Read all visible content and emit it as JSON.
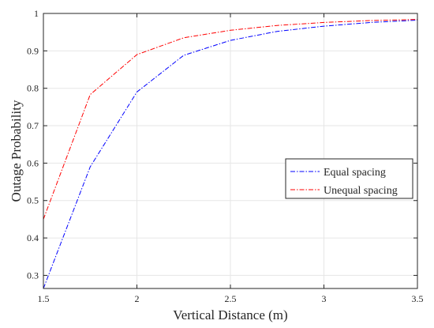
{
  "chart_data": {
    "type": "line",
    "xlabel": "Vertical Distance (m)",
    "ylabel": "Outage Probability",
    "xlim": [
      1.5,
      3.5
    ],
    "ylim": [
      0.265,
      1.0
    ],
    "xticks": [
      1.5,
      2,
      2.5,
      3,
      3.5
    ],
    "xtick_labels": [
      "1.5",
      "2",
      "2.5",
      "3",
      "3.5"
    ],
    "yticks": [
      0.3,
      0.4,
      0.5,
      0.6,
      0.7,
      0.8,
      0.9,
      1.0
    ],
    "ytick_labels": [
      "0.3",
      "0.4",
      "0.5",
      "0.6",
      "0.7",
      "0.8",
      "0.9",
      "1"
    ],
    "grid": true,
    "legend_position": "center-right",
    "x": [
      1.5,
      1.75,
      2.0,
      2.25,
      2.5,
      2.75,
      3.0,
      3.25,
      3.5
    ],
    "series": [
      {
        "name": "Equal spacing",
        "color": "#0000ff",
        "values": [
          0.265,
          0.59,
          0.79,
          0.888,
          0.928,
          0.952,
          0.966,
          0.976,
          0.982
        ]
      },
      {
        "name": "Unequal spacing",
        "color": "#ff0000",
        "values": [
          0.45,
          0.783,
          0.89,
          0.935,
          0.955,
          0.968,
          0.976,
          0.981,
          0.984
        ]
      }
    ]
  }
}
